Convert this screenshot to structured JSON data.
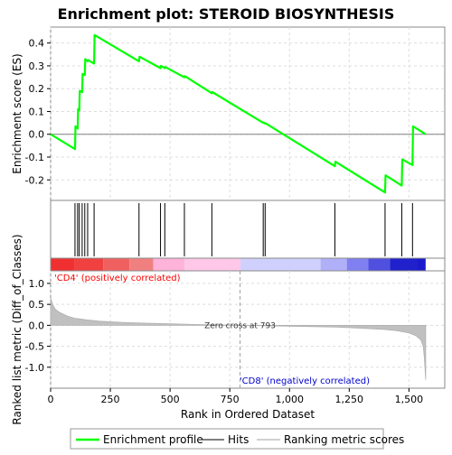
{
  "chart_data": {
    "type": "line",
    "title": "Enrichment plot: STEROID BIOSYNTHESIS",
    "xlabel": "Rank in Ordered Dataset",
    "ylabel_top": "Enrichment score (ES)",
    "ylabel_bottom": "Ranked list metric (Diff_of_Classes)",
    "x_ticks": [
      0,
      250,
      500,
      750,
      1000,
      1250,
      1500
    ],
    "x_tick_labels": [
      "0",
      "250",
      "500",
      "750",
      "1,000",
      "1,250",
      "1,500"
    ],
    "xlim": [
      0,
      1650
    ],
    "es_ylim": [
      -0.29,
      0.47
    ],
    "es_ticks": [
      -0.2,
      -0.1,
      0.0,
      0.1,
      0.2,
      0.3,
      0.4
    ],
    "es_tick_labels": [
      "-0.2",
      "-0.1",
      "0.0",
      "0.1",
      "0.2",
      "0.3",
      "0.4"
    ],
    "metric_ylim": [
      -1.5,
      1.3
    ],
    "metric_ticks": [
      -1.0,
      -0.5,
      0.0,
      0.5,
      1.0
    ],
    "metric_tick_labels": [
      "-1.0",
      "-0.5",
      "0.0",
      "0.5",
      "1.0"
    ],
    "enrichment_profile": {
      "x": [
        0,
        102,
        104,
        113,
        115,
        120,
        122,
        132,
        134,
        143,
        145,
        155,
        157,
        182,
        184,
        370,
        372,
        460,
        462,
        478,
        480,
        560,
        562,
        675,
        677,
        890,
        892,
        898,
        900,
        1190,
        1192,
        1400,
        1402,
        1470,
        1472,
        1515,
        1517,
        1570
      ],
      "y": [
        0.0,
        -0.065,
        0.035,
        0.025,
        0.11,
        0.105,
        0.19,
        0.185,
        0.265,
        0.26,
        0.33,
        0.32,
        0.325,
        0.31,
        0.435,
        0.32,
        0.34,
        0.29,
        0.3,
        0.29,
        0.295,
        0.25,
        0.255,
        0.18,
        0.185,
        0.05,
        0.052,
        0.047,
        0.048,
        -0.14,
        -0.12,
        -0.255,
        -0.18,
        -0.225,
        -0.11,
        -0.135,
        0.035,
        0.0
      ]
    },
    "hits": [
      102,
      113,
      120,
      132,
      143,
      155,
      182,
      370,
      460,
      478,
      560,
      675,
      890,
      898,
      1190,
      1400,
      1470,
      1515
    ],
    "ranking_metric": {
      "x": [
        0,
        10,
        20,
        40,
        70,
        100,
        150,
        200,
        300,
        400,
        500,
        600,
        700,
        793,
        900,
        1000,
        1100,
        1200,
        1300,
        1400,
        1450,
        1500,
        1530,
        1550,
        1560,
        1565,
        1570
      ],
      "y": [
        0.65,
        0.48,
        0.38,
        0.3,
        0.22,
        0.17,
        0.13,
        0.1,
        0.07,
        0.05,
        0.035,
        0.02,
        0.01,
        0.0,
        -0.01,
        -0.02,
        -0.03,
        -0.045,
        -0.07,
        -0.1,
        -0.13,
        -0.18,
        -0.25,
        -0.35,
        -0.5,
        -0.8,
        -1.3
      ]
    },
    "zero_cross_x": 793,
    "zero_cross_label": "Zero cross at 793",
    "pos_label": "'CD4' (positively correlated)",
    "neg_label": "'CD8' (negatively correlated)",
    "gradient_colors": [
      "#f03030",
      "#f04040",
      "#f06060",
      "#f08080",
      "#ffb3d9",
      "#ffc8e8",
      "#d0d0ff",
      "#b0b0f8",
      "#8080f0",
      "#5050e0",
      "#2020cc"
    ],
    "legend": [
      {
        "label": "Enrichment profile",
        "color": "#00ff00"
      },
      {
        "label": "Hits",
        "color": "#000000"
      },
      {
        "label": "Ranking metric scores",
        "color": "#c0c0c0"
      }
    ],
    "profile_color": "#00ff00",
    "metric_color": "#c0c0c0",
    "pos_label_color": "#ff0000",
    "neg_label_color": "#0000cc"
  }
}
